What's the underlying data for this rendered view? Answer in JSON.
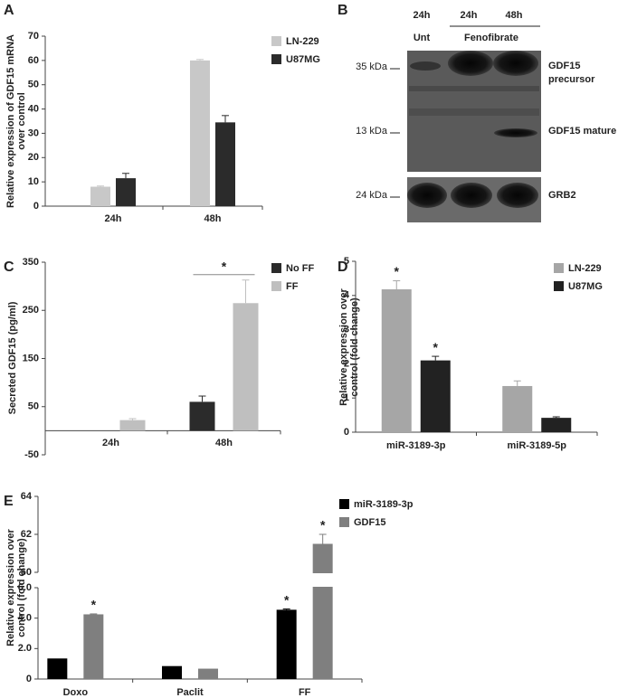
{
  "chart_data": [
    {
      "type": "bar",
      "panel": "A",
      "y_label": [
        "Relative expression of GDF15 mRNA",
        "over control"
      ],
      "categories": [
        "24h",
        "48h"
      ],
      "series": [
        {
          "name": "LN-229",
          "color": "#c8c8c8",
          "values": [
            8,
            60
          ],
          "errors": [
            0.3,
            0.4
          ]
        },
        {
          "name": "U87MG",
          "color": "#2b2b2b",
          "values": [
            11.5,
            34.5
          ],
          "errors": [
            2,
            2.8
          ]
        }
      ],
      "ylim": [
        0,
        70
      ],
      "yticks": [
        0,
        10,
        20,
        30,
        40,
        50,
        60,
        70
      ]
    },
    {
      "type": "bar",
      "panel": "C",
      "y_label": [
        "Secreted GDF15 (pg/ml)"
      ],
      "categories": [
        "24h",
        "48h"
      ],
      "series": [
        {
          "name": "No FF",
          "color": "#2b2b2b",
          "values": [
            0,
            60
          ],
          "errors": [
            0,
            12
          ]
        },
        {
          "name": "FF",
          "color": "#bfbfbf",
          "values": [
            22,
            265
          ],
          "errors": [
            3,
            48
          ]
        }
      ],
      "annotation": "*",
      "ylim": [
        -50,
        350
      ],
      "yticks": [
        -50,
        50,
        150,
        250,
        350
      ]
    },
    {
      "type": "bar",
      "panel": "D",
      "y_label": [
        "Relative expression over",
        "control (fold change)"
      ],
      "categories": [
        "miR-3189-3p",
        "miR-3189-5p"
      ],
      "series": [
        {
          "name": "LN-229",
          "color": "#a6a6a6",
          "values": [
            4.18,
            1.35
          ],
          "errors": [
            0.25,
            0.15
          ],
          "significance": [
            "*",
            null
          ]
        },
        {
          "name": "U87MG",
          "color": "#222222",
          "values": [
            2.1,
            0.42
          ],
          "errors": [
            0.12,
            0.03
          ],
          "significance": [
            "*",
            null
          ]
        }
      ],
      "ylim": [
        0,
        5
      ],
      "yticks": [
        0,
        1,
        2,
        3,
        4,
        5
      ]
    },
    {
      "type": "bar",
      "panel": "E",
      "y_label": [
        "Relative expression over",
        "control (fold change)"
      ],
      "categories": [
        "Doxo",
        "Paclit",
        "FF"
      ],
      "series": [
        {
          "name": "miR-3189-3p",
          "color": "#000000",
          "values": [
            1.35,
            0.85,
            4.55
          ],
          "errors": [
            0,
            0,
            0.05
          ],
          "significance": [
            null,
            null,
            "*"
          ]
        },
        {
          "name": "GDF15",
          "color": "#7f7f7f",
          "values": [
            4.25,
            0.68,
            61.5
          ],
          "errors": [
            0.03,
            0,
            0.5
          ],
          "significance": [
            "*",
            null,
            "*"
          ]
        }
      ],
      "ylim": [
        0,
        64
      ],
      "axis_break": [
        6,
        60
      ],
      "yticks": [
        0,
        {
          "value": 2,
          "label": "2.0"
        },
        {
          "value": 4,
          "label": "4.0"
        },
        {
          "value": 6,
          "label": "6.0"
        },
        60,
        62,
        64
      ]
    }
  ],
  "blot": {
    "panel": "B",
    "columns": [
      "24h",
      "24h",
      "48h"
    ],
    "groups": [
      "Unt",
      "Fenofibrate"
    ],
    "markers": [
      "35 kDa",
      "13 kDa",
      "24 kDa"
    ],
    "bands": [
      [
        "GDF15",
        "precursor"
      ],
      [
        "GDF15 mature"
      ],
      [
        "GRB2"
      ]
    ]
  }
}
